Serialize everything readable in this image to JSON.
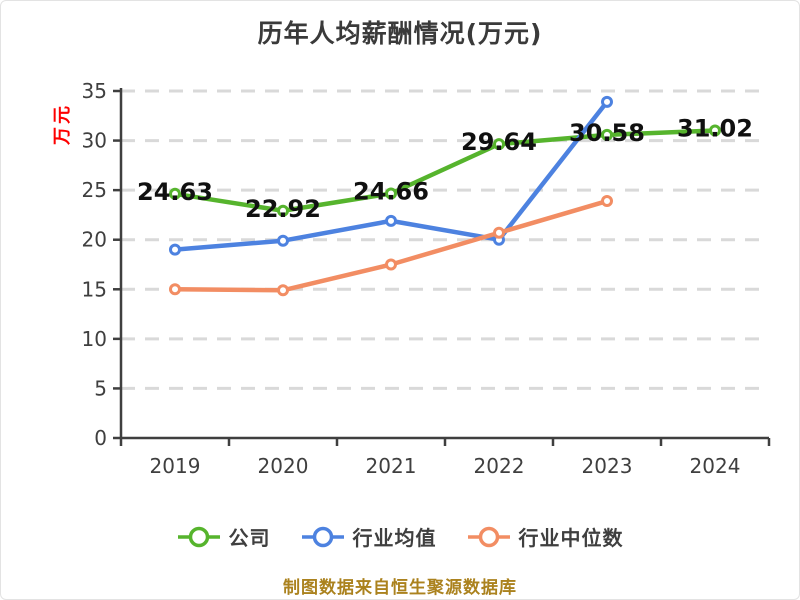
{
  "source_note": "制图数据来自恒生聚源数据库",
  "chart_data": {
    "type": "line",
    "title": "历年人均薪酬情况(万元)",
    "xlabel": "",
    "ylabel": "万元",
    "categories": [
      "2019",
      "2020",
      "2021",
      "2022",
      "2023",
      "2024"
    ],
    "series": [
      {
        "name": "公司",
        "color": "#56b42d",
        "values": [
          24.63,
          22.92,
          24.66,
          29.64,
          30.58,
          31.02
        ],
        "point_labels": [
          "24.63",
          "22.92",
          "24.66",
          "29.64",
          "30.58",
          "31.02"
        ]
      },
      {
        "name": "行业均值",
        "color": "#4d82e0",
        "values": [
          19.0,
          19.9,
          21.9,
          20.0,
          33.9
        ],
        "point_labels": []
      },
      {
        "name": "行业中位数",
        "color": "#f28d63",
        "values": [
          15.0,
          14.9,
          17.5,
          20.7,
          23.9
        ],
        "point_labels": []
      }
    ],
    "ylim": [
      0,
      35
    ],
    "yticks": [
      0,
      5,
      10,
      15,
      20,
      25,
      30,
      35
    ],
    "grid": "horizontal-dashed",
    "legend_position": "bottom",
    "style": {
      "axis_color": "#3f3f3f",
      "grid_color": "#d9d9d9",
      "point_label_color": "#101010",
      "ylabel_color": "#fe0000",
      "title_color": "#3a3a3a",
      "source_color": "#ab821e",
      "background": "#ffffff"
    }
  }
}
